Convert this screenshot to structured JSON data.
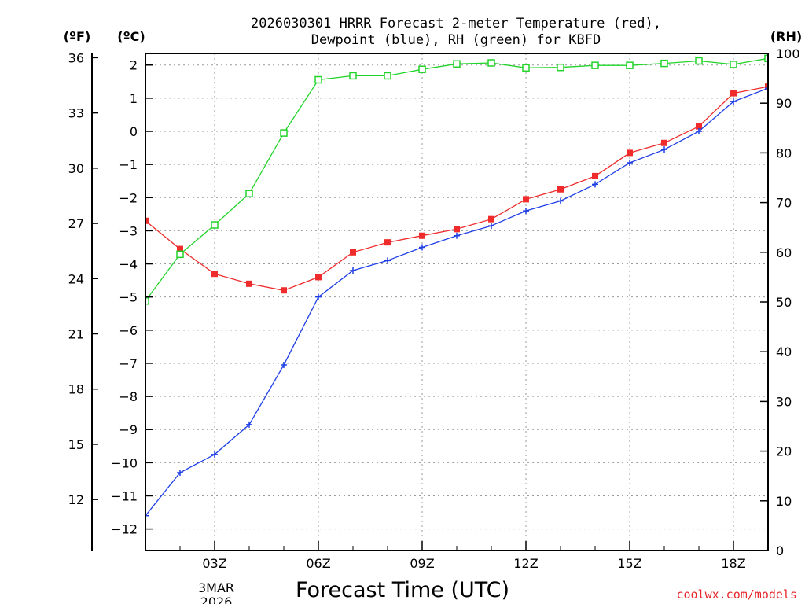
{
  "title_lines": [
    "2026030301 HRRR Forecast 2-meter Temperature (red),",
    "Dewpoint (blue), RH (green) for KBFD"
  ],
  "units": {
    "fahrenheit": "(ºF)",
    "celsius": "(ºC)",
    "rh": "(RH)"
  },
  "xlabel": "Forecast Time (UTC)",
  "credit": "coolwx.com/models",
  "date_label": [
    "3MAR",
    "2026"
  ],
  "colors": {
    "temperature": "#ef2b2b",
    "dewpoint": "#1f3fe6",
    "rh": "#22d42a"
  },
  "chart_data": {
    "type": "line",
    "x": [
      1,
      2,
      3,
      4,
      5,
      6,
      7,
      8,
      9,
      10,
      11,
      12,
      13,
      14,
      15,
      16,
      17,
      18,
      19
    ],
    "xlim": [
      1,
      19
    ],
    "x_ticks": [
      {
        "x": 3,
        "label": "03Z"
      },
      {
        "x": 6,
        "label": "06Z"
      },
      {
        "x": 9,
        "label": "09Z"
      },
      {
        "x": 12,
        "label": "12Z"
      },
      {
        "x": 15,
        "label": "15Z"
      },
      {
        "x": 18,
        "label": "18Z"
      }
    ],
    "celsius_axis": {
      "ylim": [
        -12.65,
        2.35
      ],
      "ticks": [
        2,
        1,
        0,
        -1,
        -2,
        -3,
        -4,
        -5,
        -6,
        -7,
        -8,
        -9,
        -10,
        -11,
        -12
      ],
      "tick_labels": [
        "2",
        "1",
        "0",
        "−1",
        "−2",
        "−3",
        "−4",
        "−5",
        "−6",
        "−7",
        "−8",
        "−9",
        "−10",
        "−11",
        "−12"
      ]
    },
    "fahrenheit_axis": {
      "ticks": [
        36,
        33,
        30,
        27,
        24,
        21,
        18,
        15,
        12
      ]
    },
    "rh_axis": {
      "ylim": [
        0,
        100
      ],
      "ticks": [
        100,
        90,
        80,
        70,
        60,
        50,
        40,
        30,
        20,
        10,
        0
      ]
    },
    "series": [
      {
        "name": "Temperature",
        "axis": "celsius",
        "marker": "filled-square",
        "values": [
          -2.7,
          -3.55,
          -4.3,
          -4.6,
          -4.8,
          -4.4,
          -3.65,
          -3.35,
          -3.15,
          -2.95,
          -2.65,
          -2.05,
          -1.75,
          -1.35,
          -0.65,
          -0.35,
          0.15,
          1.15,
          1.35
        ]
      },
      {
        "name": "Dewpoint",
        "axis": "celsius",
        "marker": "plus",
        "values": [
          -11.6,
          -10.3,
          -9.75,
          -8.85,
          -7.05,
          -5.0,
          -4.2,
          -3.9,
          -3.5,
          -3.15,
          -2.85,
          -2.4,
          -2.1,
          -1.6,
          -0.95,
          -0.55,
          0.0,
          0.9,
          1.3
        ]
      },
      {
        "name": "RH",
        "axis": "rh",
        "marker": "open-square",
        "values": [
          50.2,
          59.6,
          65.5,
          71.8,
          84.0,
          94.7,
          95.5,
          95.5,
          96.8,
          97.9,
          98.1,
          97.1,
          97.2,
          97.6,
          97.6,
          98.0,
          98.5,
          97.8,
          99.0
        ]
      }
    ]
  }
}
